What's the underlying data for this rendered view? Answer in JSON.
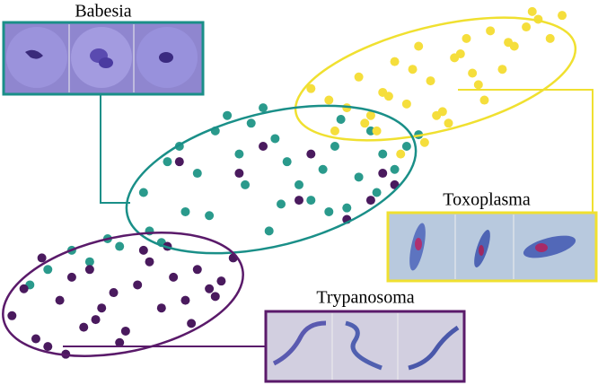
{
  "chart_data": {
    "type": "scatter",
    "xlim": [
      0,
      100
    ],
    "ylim": [
      0,
      100
    ],
    "series": [
      {
        "name": "Babesia",
        "color": "#2a9a8c",
        "x": [
          24,
          28,
          30,
          33,
          36,
          38,
          40,
          42,
          44,
          46,
          48,
          50,
          52,
          54,
          56,
          58,
          60,
          62,
          64,
          66,
          68,
          70,
          35,
          45,
          55,
          5,
          8,
          12,
          15,
          18,
          20,
          25,
          27,
          31,
          41,
          47,
          57,
          63
        ],
        "values": [
          50,
          58,
          62,
          55,
          66,
          70,
          60,
          68,
          72,
          64,
          58,
          52,
          48,
          56,
          62,
          46,
          54,
          66,
          60,
          56,
          62,
          65,
          44,
          40,
          45,
          26,
          30,
          35,
          32,
          38,
          36,
          40,
          37,
          45,
          52,
          47,
          69,
          50
        ]
      },
      {
        "name": "Toxoplasma",
        "color": "#f5de3c",
        "x": [
          52,
          55,
          58,
          60,
          62,
          64,
          66,
          68,
          70,
          72,
          74,
          76,
          78,
          80,
          82,
          84,
          86,
          88,
          90,
          92,
          94,
          56,
          61,
          65,
          69,
          73,
          77,
          81,
          85,
          89,
          71,
          75,
          79,
          63,
          67
        ],
        "values": [
          77,
          74,
          72,
          80,
          70,
          76,
          84,
          73,
          88,
          79,
          71,
          85,
          90,
          78,
          92,
          82,
          88,
          93,
          95,
          90,
          96,
          66,
          68,
          75,
          82,
          70,
          86,
          74,
          89,
          97,
          63,
          68,
          81,
          66,
          60
        ]
      },
      {
        "name": "Trypanosoma",
        "color": "#4a1a5e",
        "x": [
          2,
          4,
          6,
          8,
          10,
          12,
          14,
          15,
          17,
          19,
          21,
          23,
          25,
          27,
          29,
          31,
          33,
          35,
          37,
          7,
          11,
          16,
          20,
          24,
          28,
          32,
          36,
          39,
          30,
          40,
          50,
          58,
          62,
          64,
          66,
          52,
          44
        ],
        "values": [
          18,
          25,
          12,
          10,
          22,
          28,
          15,
          30,
          20,
          24,
          14,
          26,
          32,
          20,
          28,
          22,
          30,
          25,
          27,
          33,
          8,
          17,
          11,
          35,
          36,
          16,
          23,
          33,
          58,
          55,
          48,
          43,
          48,
          55,
          52,
          60,
          62
        ]
      }
    ]
  }
}
